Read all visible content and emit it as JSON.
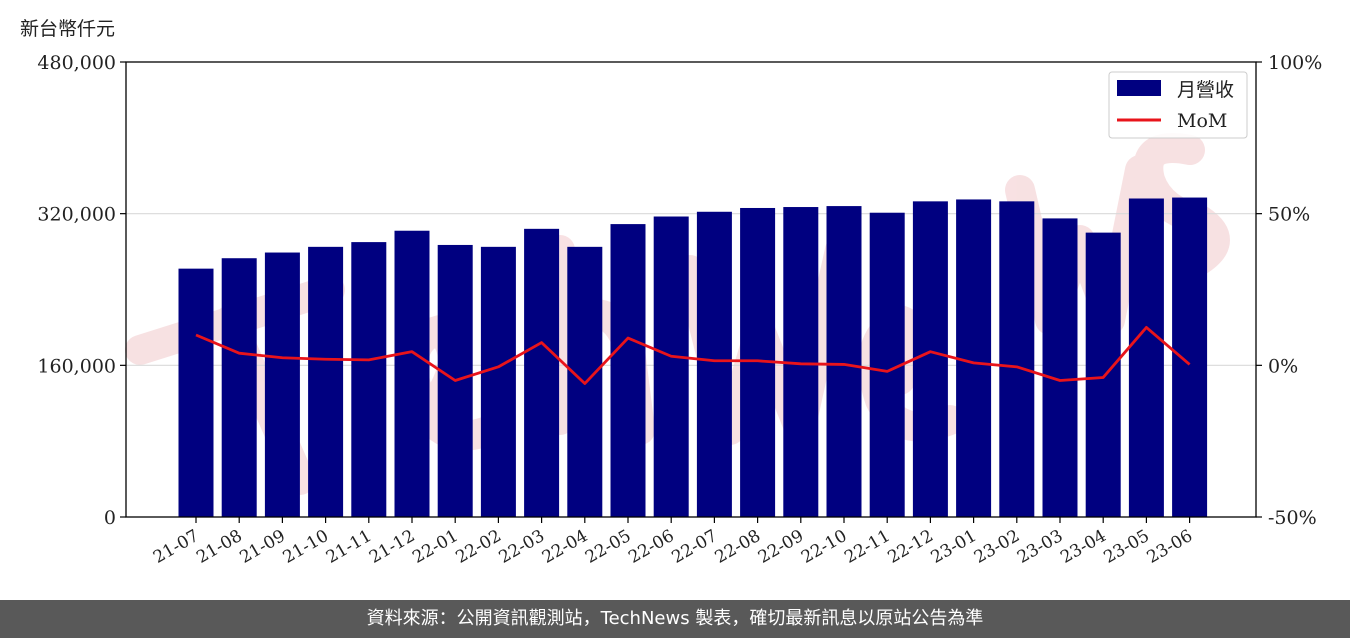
{
  "unit_label": "新台幣仟元",
  "footer_text": "資料來源：公開資訊觀測站，TechNews 製表，確切最新訊息以原站公告為準",
  "colors": {
    "bar": "#000080",
    "line": "#e8141b",
    "grid": "#d9d9d9",
    "footer_bg": "#595959",
    "watermark": "#f5d6d8"
  },
  "chart_data": {
    "type": "bar",
    "categories": [
      "21-07",
      "21-08",
      "21-09",
      "21-10",
      "21-11",
      "21-12",
      "22-01",
      "22-02",
      "22-03",
      "22-04",
      "22-05",
      "22-06",
      "22-07",
      "22-08",
      "22-09",
      "22-10",
      "22-11",
      "22-12",
      "23-01",
      "23-02",
      "23-03",
      "23-04",
      "23-05",
      "23-06"
    ],
    "series": [
      {
        "name": "月營收",
        "type": "bar",
        "axis": "left",
        "values": [
          262000,
          273000,
          279000,
          285000,
          290000,
          302000,
          287000,
          285000,
          304000,
          285000,
          309000,
          317000,
          322000,
          326000,
          327000,
          328000,
          321000,
          333000,
          335000,
          333000,
          315000,
          300000,
          336000,
          337000
        ]
      },
      {
        "name": "MoM",
        "type": "line",
        "axis": "right",
        "values": [
          10,
          4,
          2.5,
          2,
          1.8,
          4.5,
          -5,
          -0.5,
          7.5,
          -6,
          9,
          3,
          1.5,
          1.5,
          0.5,
          0.3,
          -2,
          4.5,
          0.8,
          -0.5,
          -5,
          -4,
          12.5,
          0.3
        ]
      }
    ],
    "left_axis": {
      "ylim": [
        0,
        480000
      ],
      "ticks": [
        "0",
        "160,000",
        "320,000",
        "480,000"
      ]
    },
    "right_axis": {
      "ylim": [
        -50,
        100
      ],
      "ticks": [
        "-50%",
        "0%",
        "50%",
        "100%"
      ]
    },
    "legend": {
      "placement": "top-right",
      "entries": [
        "月營收",
        "MoM"
      ]
    },
    "grid": "horizontal"
  }
}
